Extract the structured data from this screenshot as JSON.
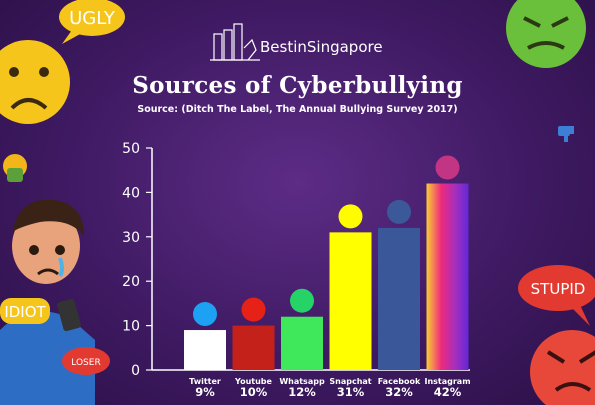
{
  "brand": {
    "name": "BestinSingapore"
  },
  "stickers": {
    "ugly": "UGLY",
    "idiot": "IDIOT",
    "loser": "LOSER",
    "stupid": "STUPID"
  },
  "colors": {
    "Twitter": "#ffffff",
    "Youtube": "#c4211b",
    "Whatsapp": "#3fe85a",
    "Snapchat": "#ffff00",
    "Facebook": "#3a5899",
    "twitter_icon": "#1da1f2",
    "youtube_icon": "#e62117",
    "whatsapp_icon": "#25d366",
    "snapchat_icon": "#fffc00",
    "facebook_icon": "#3b5998",
    "instagram_icon": "#c13584"
  },
  "chart_data": {
    "type": "bar",
    "title": "Sources of Cyberbullying",
    "subtitle": "Source: (Ditch The Label, The Annual Bullying Survey 2017)",
    "categories": [
      "Twitter",
      "Youtube",
      "Whatsapp",
      "Snapchat",
      "Facebook",
      "Instagram"
    ],
    "values": [
      9,
      10,
      12,
      31,
      32,
      42
    ],
    "value_labels": [
      "9%",
      "10%",
      "12%",
      "31%",
      "32%",
      "42%"
    ],
    "ylim": [
      0,
      50
    ],
    "yticks": [
      0,
      10,
      20,
      30,
      40,
      50
    ],
    "grid": false,
    "icons": [
      "twitter-icon",
      "youtube-icon",
      "whatsapp-icon",
      "snapchat-icon",
      "facebook-icon",
      "instagram-icon"
    ]
  }
}
